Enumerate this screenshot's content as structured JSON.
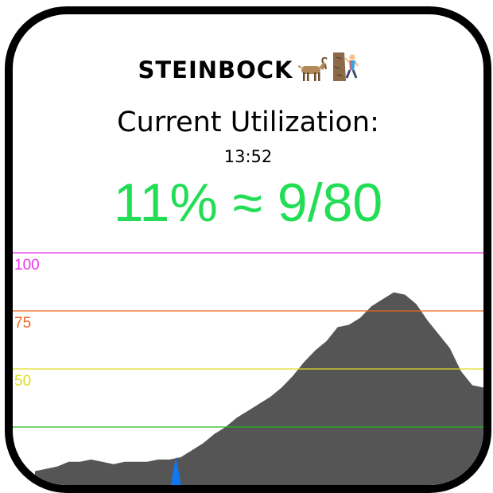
{
  "widget": {
    "title": "STEINBOCK",
    "title_icons": [
      "goat-icon",
      "climber-icon"
    ],
    "heading": "Current Utilization:",
    "time": "13:52",
    "utilization_display": "11% ≈ 9/80",
    "value_color": "#22dd55"
  },
  "chart_data": {
    "type": "area",
    "title": "",
    "xlabel": "",
    "ylabel": "",
    "ylim": [
      0,
      100
    ],
    "grid": false,
    "thresholds": [
      {
        "value": 100,
        "label": "100",
        "color": "#ee33ee"
      },
      {
        "value": 75,
        "label": "75",
        "color": "#ee6622"
      },
      {
        "value": 50,
        "label": "50",
        "color": "#dddd22"
      },
      {
        "value": 25,
        "label": "",
        "color": "#22bb22"
      }
    ],
    "series": [
      {
        "color": "#555555",
        "values": [
          6,
          7,
          8,
          10,
          10,
          11,
          10,
          9,
          10,
          10,
          10,
          11,
          11,
          12,
          15,
          18,
          22,
          25,
          29,
          32,
          35,
          38,
          42,
          47,
          53,
          58,
          62,
          68,
          69,
          72,
          77,
          80,
          83,
          82,
          78,
          71,
          65,
          59,
          49,
          43,
          42
        ]
      }
    ],
    "marker": {
      "index": 12,
      "color": "#1177ee"
    }
  }
}
